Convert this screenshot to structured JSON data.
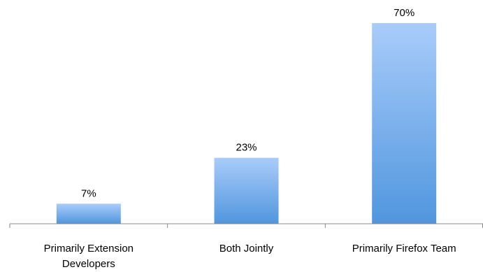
{
  "chart_data": {
    "type": "bar",
    "categories": [
      [
        "Primarily Extension",
        "Developers"
      ],
      [
        "Both Jointly"
      ],
      [
        "Primarily Firefox Team"
      ]
    ],
    "values": [
      7,
      23,
      70
    ],
    "data_labels": [
      "7%",
      "23%",
      "70%"
    ],
    "title": "",
    "xlabel": "",
    "ylabel": "",
    "ylim": [
      0,
      70
    ],
    "grid": false,
    "legend": "none",
    "colors": {
      "bar_top": "#A9CCFA",
      "bar_bottom": "#5096DE",
      "axis": "#888888"
    }
  }
}
